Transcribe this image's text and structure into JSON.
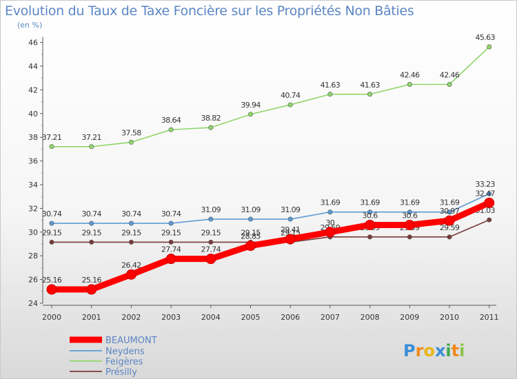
{
  "header": {
    "title": "Evolution du Taux de Taxe Foncière sur les Propriétés Non Bâties",
    "unit": "(en %)"
  },
  "logo": {
    "text": "Proxiti"
  },
  "chart_data": {
    "type": "line",
    "title": "Evolution du Taux de Taxe Foncière sur les Propriétés Non Bâties",
    "ylabel": "(en %)",
    "xlabel": "",
    "ylim": [
      24,
      46
    ],
    "yticks": [
      24,
      26,
      28,
      30,
      32,
      34,
      36,
      38,
      40,
      42,
      44,
      46
    ],
    "categories": [
      "2000",
      "2001",
      "2002",
      "2003",
      "2004",
      "2005",
      "2006",
      "2007",
      "2008",
      "2009",
      "2010",
      "2011"
    ],
    "series": [
      {
        "name": "BEAUMONT",
        "color": "#ff0000",
        "values": [
          25.16,
          25.16,
          26.42,
          27.74,
          27.74,
          28.85,
          29.41,
          30,
          30.6,
          30.6,
          30.97,
          32.47
        ],
        "labels": [
          "25.16",
          "25.16",
          "26.42",
          "27.74",
          "27.74",
          "28.85",
          "29.41",
          "30",
          "30.6",
          "30.6",
          "30.97",
          "32.47"
        ]
      },
      {
        "name": "Neydens",
        "color": "#5b9bd5",
        "values": [
          30.74,
          30.74,
          30.74,
          30.74,
          31.09,
          31.09,
          31.09,
          31.69,
          31.69,
          31.69,
          31.69,
          33.23
        ],
        "labels": [
          "30.74",
          "30.74",
          "30.74",
          "30.74",
          "31.09",
          "31.09",
          "31.09",
          "31.69",
          "31.69",
          "31.69",
          "31.69",
          "33.23"
        ]
      },
      {
        "name": "Feigères",
        "color": "#8fd66b",
        "values": [
          37.21,
          37.21,
          37.58,
          38.64,
          38.82,
          39.94,
          40.74,
          41.63,
          41.63,
          42.46,
          42.46,
          45.63
        ],
        "labels": [
          "37.21",
          "37.21",
          "37.58",
          "38.64",
          "38.82",
          "39.94",
          "40.74",
          "41.63",
          "41.63",
          "42.46",
          "42.46",
          "45.63"
        ]
      },
      {
        "name": "Présilly",
        "color": "#7a3b3b",
        "values": [
          29.15,
          29.15,
          29.15,
          29.15,
          29.15,
          29.15,
          29.15,
          29.59,
          29.59,
          29.59,
          29.59,
          31.03
        ],
        "labels": [
          "29.15",
          "29.15",
          "29.15",
          "29.15",
          "29.15",
          "29.15",
          "29.15",
          "29.59",
          "29.59",
          "29.59",
          "29.59",
          "31.03"
        ]
      }
    ]
  }
}
